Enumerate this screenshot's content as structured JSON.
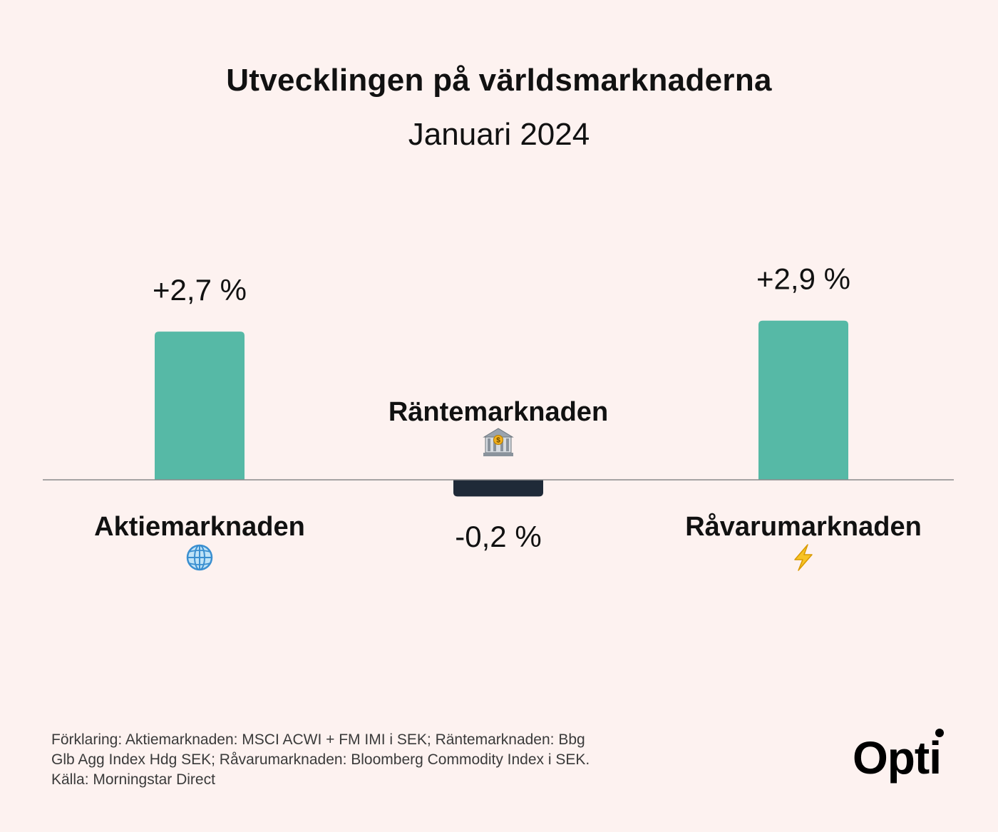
{
  "header": {
    "title": "Utvecklingen på världsmarknaderna",
    "subtitle": "Januari 2024"
  },
  "colors": {
    "background": "#fdf2f0",
    "positive": "#56b9a6",
    "negative": "#1f2a38",
    "baseline": "#8a8a8a"
  },
  "chart_data": {
    "type": "bar",
    "categories": [
      "Aktiemarknaden",
      "Räntemarknaden",
      "Råvarumarknaden"
    ],
    "values": [
      2.7,
      -0.2,
      2.9
    ],
    "value_labels": [
      "+2,7 %",
      "-0,2 %",
      "+2,9 %"
    ],
    "icons": [
      "globe-icon",
      "bank-icon",
      "lightning-icon"
    ],
    "title": "Utvecklingen på världsmarknaderna",
    "subtitle": "Januari 2024",
    "xlabel": "",
    "ylabel": "",
    "grid": false,
    "legend": "none"
  },
  "footnote": {
    "line1": "Förklaring: Aktiemarknaden: MSCI ACWI + FM IMI i SEK; Räntemarknaden: Bbg",
    "line2": "Glb Agg Index Hdg SEK; Råvarumarknaden: Bloomberg Commodity Index i SEK.",
    "line3": "Källa: Morningstar Direct"
  },
  "logo": {
    "text": "Opti"
  }
}
